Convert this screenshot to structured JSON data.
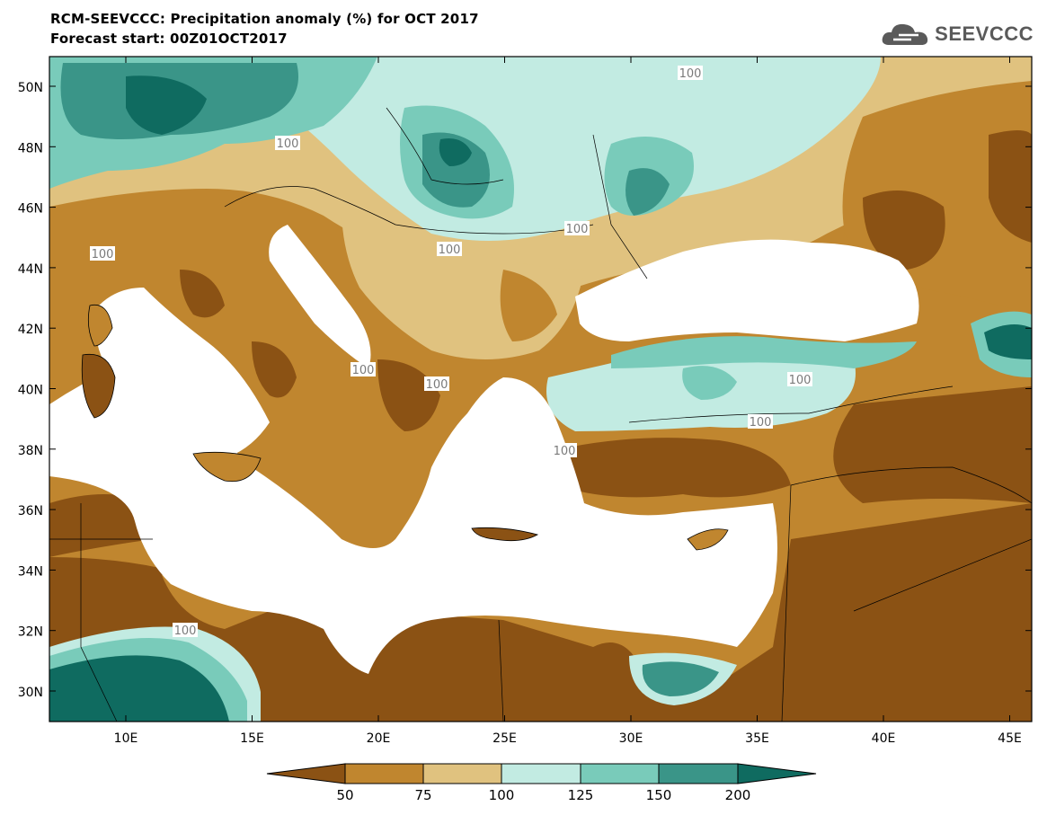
{
  "title_line1": "RCM-SEEVCCC: Precipitation anomaly (%) for OCT 2017",
  "title_line2": "Forecast start: 00Z01OCT2017",
  "logo_text": "SEEVCCC",
  "logo_icon": "cloud-icon",
  "map": {
    "lat_ticks": [
      "50N",
      "48N",
      "46N",
      "44N",
      "42N",
      "40N",
      "38N",
      "36N",
      "34N",
      "32N",
      "30N"
    ],
    "lon_ticks": [
      "10E",
      "15E",
      "20E",
      "25E",
      "30E",
      "35E",
      "40E",
      "45E"
    ],
    "contour_labels": [
      "100",
      "100",
      "100",
      "100",
      "100",
      "100",
      "100",
      "100",
      "100",
      "100",
      "100"
    ]
  },
  "colorbar": {
    "labels": [
      "50",
      "75",
      "100",
      "125",
      "150",
      "200"
    ],
    "colors": [
      "#8b5214",
      "#c0862f",
      "#e0c27f",
      "#c2ebe2",
      "#79cbba",
      "#3a9588",
      "#0f6b60"
    ]
  }
}
